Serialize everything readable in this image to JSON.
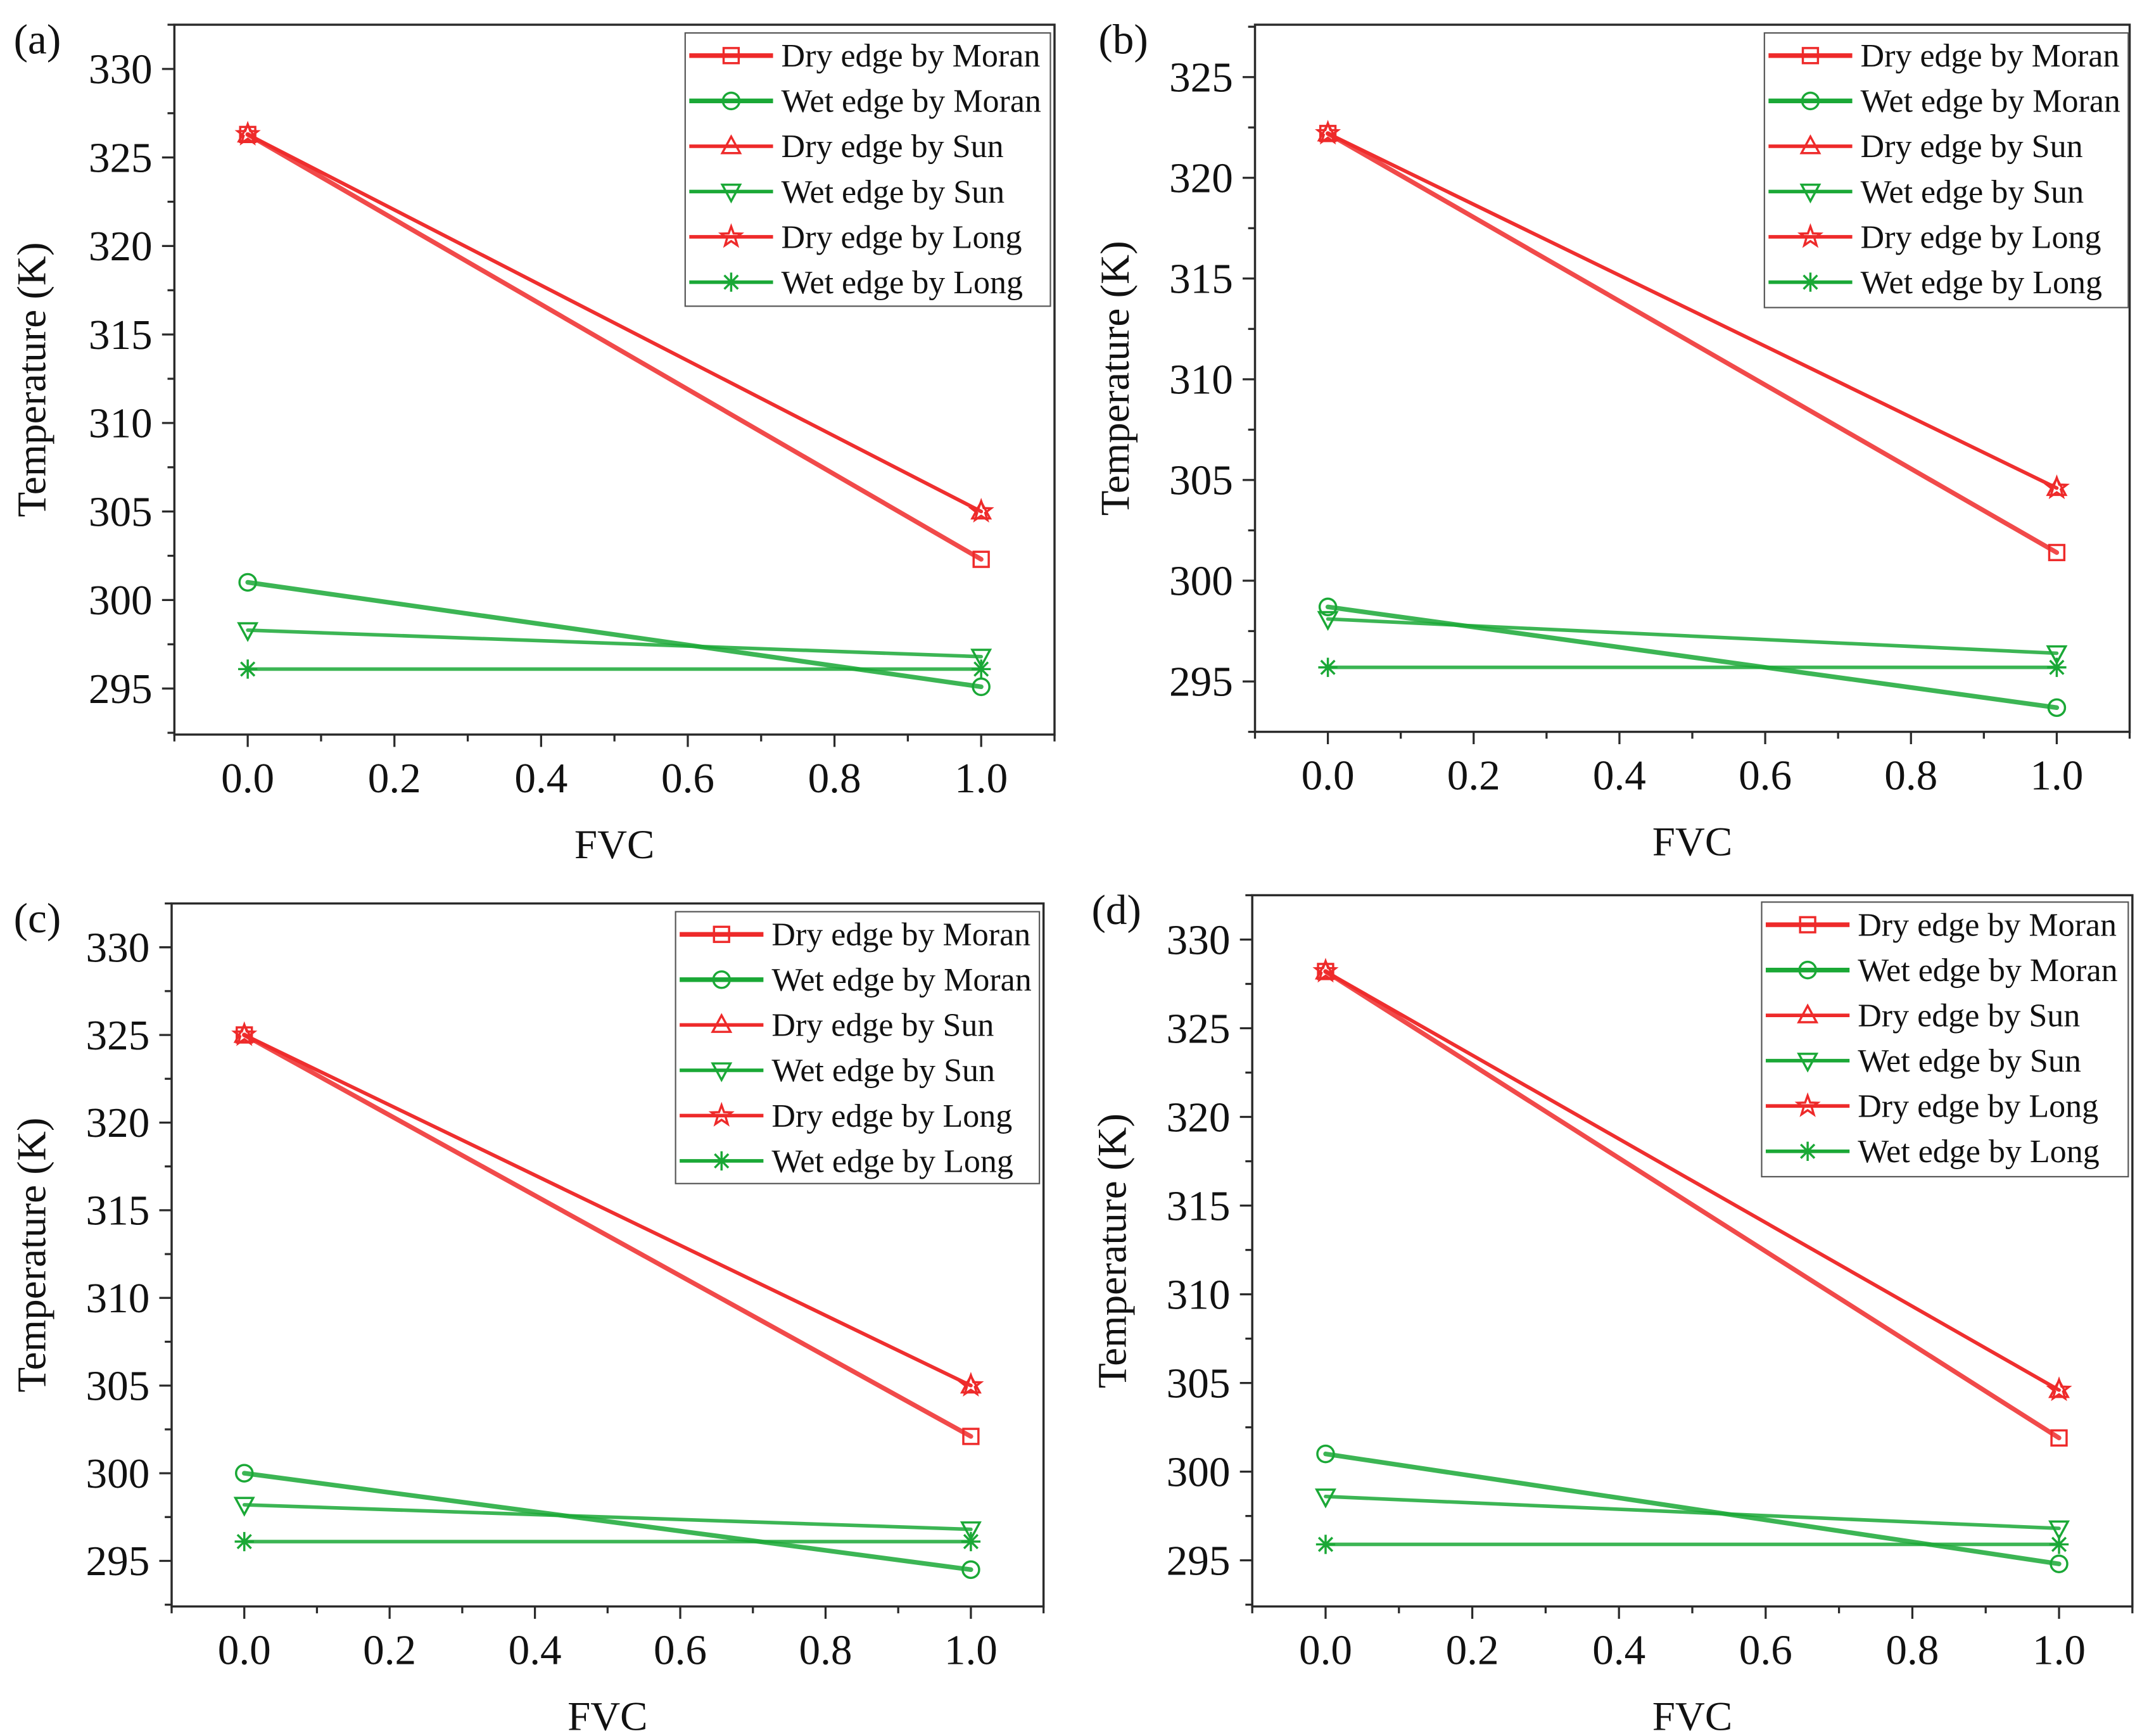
{
  "chart_data": [
    {
      "panel": "(a)",
      "type": "line",
      "title": "",
      "xlabel": "FVC",
      "ylabel": "Temperature (K)",
      "xlim": [
        -0.1,
        1.1
      ],
      "ylim": [
        292.4,
        332.5
      ],
      "xticks": [
        "0.0",
        "0.2",
        "0.4",
        "0.6",
        "0.8",
        "1.0"
      ],
      "yticks": [
        "295",
        "300",
        "305",
        "310",
        "315",
        "320",
        "325",
        "330"
      ],
      "x_minor_step": 0.1,
      "y_minor_step": 2.5,
      "grid": false,
      "legend_position": "top-right",
      "series": [
        {
          "name": "Dry edge by Moran",
          "x": [
            0,
            1
          ],
          "y": [
            326.3,
            302.3
          ],
          "color": "#EE2A2A",
          "marker": "square"
        },
        {
          "name": "Wet edge by Moran",
          "x": [
            0,
            1
          ],
          "y": [
            301.0,
            295.1
          ],
          "color": "#1AA836",
          "marker": "circle"
        },
        {
          "name": "Dry edge by Sun",
          "x": [
            0,
            1
          ],
          "y": [
            326.3,
            305.0
          ],
          "color": "#EE2A2A",
          "marker": "triangle-up"
        },
        {
          "name": "Wet edge by Sun",
          "x": [
            0,
            1
          ],
          "y": [
            298.3,
            296.8
          ],
          "color": "#1AA836",
          "marker": "triangle-down"
        },
        {
          "name": "Dry edge by Long",
          "x": [
            0,
            1
          ],
          "y": [
            326.3,
            305.0
          ],
          "color": "#EE2A2A",
          "marker": "star"
        },
        {
          "name": "Wet edge by Long",
          "x": [
            0,
            1
          ],
          "y": [
            296.1,
            296.1
          ],
          "color": "#1AA836",
          "marker": "asterisk"
        }
      ]
    },
    {
      "panel": "(b)",
      "type": "line",
      "title": "",
      "xlabel": "FVC",
      "ylabel": "Temperature (K)",
      "xlim": [
        -0.1,
        1.1
      ],
      "ylim": [
        292.5,
        327.6
      ],
      "xticks": [
        "0.0",
        "0.2",
        "0.4",
        "0.6",
        "0.8",
        "1.0"
      ],
      "yticks": [
        "295",
        "300",
        "305",
        "310",
        "315",
        "320",
        "325"
      ],
      "x_minor_step": 0.1,
      "y_minor_step": 2.5,
      "grid": false,
      "legend_position": "top-right",
      "series": [
        {
          "name": "Dry edge by Moran",
          "x": [
            0,
            1
          ],
          "y": [
            322.2,
            301.4
          ],
          "color": "#EE2A2A",
          "marker": "square"
        },
        {
          "name": "Wet edge by Moran",
          "x": [
            0,
            1
          ],
          "y": [
            298.7,
            293.7
          ],
          "color": "#1AA836",
          "marker": "circle"
        },
        {
          "name": "Dry edge by Sun",
          "x": [
            0,
            1
          ],
          "y": [
            322.2,
            304.6
          ],
          "color": "#EE2A2A",
          "marker": "triangle-up"
        },
        {
          "name": "Wet edge by Sun",
          "x": [
            0,
            1
          ],
          "y": [
            298.1,
            296.4
          ],
          "color": "#1AA836",
          "marker": "triangle-down"
        },
        {
          "name": "Dry edge by Long",
          "x": [
            0,
            1
          ],
          "y": [
            322.2,
            304.6
          ],
          "color": "#EE2A2A",
          "marker": "star"
        },
        {
          "name": "Wet edge by Long",
          "x": [
            0,
            1
          ],
          "y": [
            295.7,
            295.7
          ],
          "color": "#1AA836",
          "marker": "asterisk"
        }
      ]
    },
    {
      "panel": "(c)",
      "type": "line",
      "title": "",
      "xlabel": "FVC",
      "ylabel": "Temperature (K)",
      "xlim": [
        -0.1,
        1.1
      ],
      "ylim": [
        292.4,
        332.5
      ],
      "xticks": [
        "0.0",
        "0.2",
        "0.4",
        "0.6",
        "0.8",
        "1.0"
      ],
      "yticks": [
        "295",
        "300",
        "305",
        "310",
        "315",
        "320",
        "325",
        "330"
      ],
      "x_minor_step": 0.1,
      "y_minor_step": 2.5,
      "grid": false,
      "legend_position": "top-right",
      "series": [
        {
          "name": "Dry edge by Moran",
          "x": [
            0,
            1
          ],
          "y": [
            325.0,
            302.1
          ],
          "color": "#EE2A2A",
          "marker": "square"
        },
        {
          "name": "Wet edge by Moran",
          "x": [
            0,
            1
          ],
          "y": [
            300.0,
            294.5
          ],
          "color": "#1AA836",
          "marker": "circle"
        },
        {
          "name": "Dry edge by Sun",
          "x": [
            0,
            1
          ],
          "y": [
            325.0,
            305.0
          ],
          "color": "#EE2A2A",
          "marker": "triangle-up"
        },
        {
          "name": "Wet edge by Sun",
          "x": [
            0,
            1
          ],
          "y": [
            298.2,
            296.8
          ],
          "color": "#1AA836",
          "marker": "triangle-down"
        },
        {
          "name": "Dry edge by Long",
          "x": [
            0,
            1
          ],
          "y": [
            325.0,
            305.0
          ],
          "color": "#EE2A2A",
          "marker": "star"
        },
        {
          "name": "Wet edge by Long",
          "x": [
            0,
            1
          ],
          "y": [
            296.1,
            296.1
          ],
          "color": "#1AA836",
          "marker": "asterisk"
        }
      ]
    },
    {
      "panel": "(d)",
      "type": "line",
      "title": "",
      "xlabel": "FVC",
      "ylabel": "Temperature (K)",
      "xlim": [
        -0.1,
        1.1
      ],
      "ylim": [
        292.4,
        332.5
      ],
      "xticks": [
        "0.0",
        "0.2",
        "0.4",
        "0.6",
        "0.8",
        "1.0"
      ],
      "yticks": [
        "295",
        "300",
        "305",
        "310",
        "315",
        "320",
        "325",
        "330"
      ],
      "x_minor_step": 0.1,
      "y_minor_step": 2.5,
      "grid": false,
      "legend_position": "top-right",
      "series": [
        {
          "name": "Dry edge by Moran",
          "x": [
            0,
            1
          ],
          "y": [
            328.2,
            301.9
          ],
          "color": "#EE2A2A",
          "marker": "square"
        },
        {
          "name": "Wet edge by Moran",
          "x": [
            0,
            1
          ],
          "y": [
            301.0,
            294.8
          ],
          "color": "#1AA836",
          "marker": "circle"
        },
        {
          "name": "Dry edge by Sun",
          "x": [
            0,
            1
          ],
          "y": [
            328.2,
            304.6
          ],
          "color": "#EE2A2A",
          "marker": "triangle-up"
        },
        {
          "name": "Wet edge by Sun",
          "x": [
            0,
            1
          ],
          "y": [
            298.6,
            296.8
          ],
          "color": "#1AA836",
          "marker": "triangle-down"
        },
        {
          "name": "Dry edge by Long",
          "x": [
            0,
            1
          ],
          "y": [
            328.2,
            304.6
          ],
          "color": "#EE2A2A",
          "marker": "star"
        },
        {
          "name": "Wet edge by Long",
          "x": [
            0,
            1
          ],
          "y": [
            295.9,
            295.9
          ],
          "color": "#1AA836",
          "marker": "asterisk"
        }
      ]
    }
  ]
}
